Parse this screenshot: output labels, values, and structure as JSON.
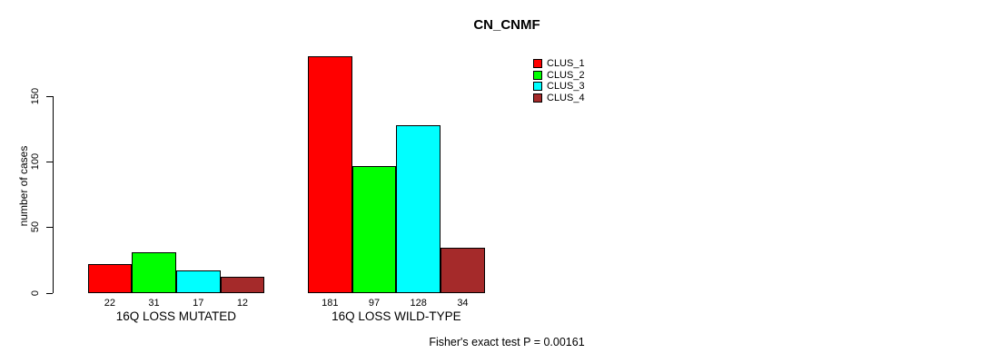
{
  "chart_data": {
    "type": "bar",
    "title": "CN_CNMF",
    "ylabel": "number of cases",
    "xlabel": "",
    "categories": [
      "16Q LOSS MUTATED",
      "16Q LOSS WILD-TYPE"
    ],
    "series": [
      {
        "name": "CLUS_1",
        "color": "#FF0000",
        "values": [
          22,
          181
        ]
      },
      {
        "name": "CLUS_2",
        "color": "#00FF00",
        "values": [
          31,
          97
        ]
      },
      {
        "name": "CLUS_3",
        "color": "#00FFFF",
        "values": [
          17,
          128
        ]
      },
      {
        "name": "CLUS_4",
        "color": "#A52A2A",
        "values": [
          12,
          34
        ]
      }
    ],
    "bar_value_labels": [
      [
        22,
        31,
        17,
        12
      ],
      [
        181,
        97,
        128,
        34
      ]
    ],
    "yticks": [
      0,
      50,
      100,
      150
    ],
    "ylim": [
      0,
      150
    ],
    "grid": false,
    "legend_position": "top-right",
    "annotation": "Fisher's exact test P = 0.00161",
    "axis_color": "#000000",
    "background_color": "#FFFFFF"
  }
}
